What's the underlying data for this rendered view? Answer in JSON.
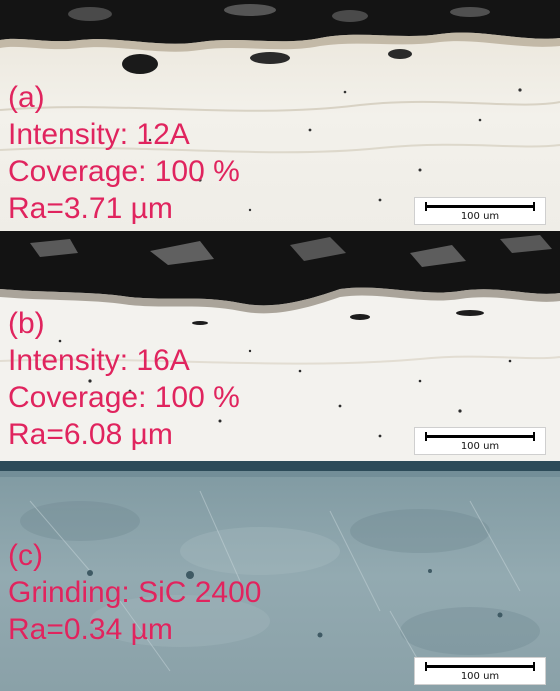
{
  "panels": [
    {
      "id": "a",
      "label": "(a)",
      "line1": "Intensity: 12A",
      "line2": "Coverage: 100 %",
      "line3": "Ra=3.71 µm",
      "scale_bar": "100 um"
    },
    {
      "id": "b",
      "label": "(b)",
      "line1": "Intensity: 16A",
      "line2": "Coverage: 100 %",
      "line3": "Ra=6.08 µm",
      "scale_bar": "100 um"
    },
    {
      "id": "c",
      "label": "(c)",
      "line1": "Grinding: SiC 2400",
      "line2": "Ra=0.34 µm",
      "scale_bar": "100 um"
    }
  ],
  "colors": {
    "label_text": "#e0245e",
    "mounting_resin": "#151515",
    "etched_metal": "#f1efe9",
    "ground_surface": "#8fa6ad"
  }
}
